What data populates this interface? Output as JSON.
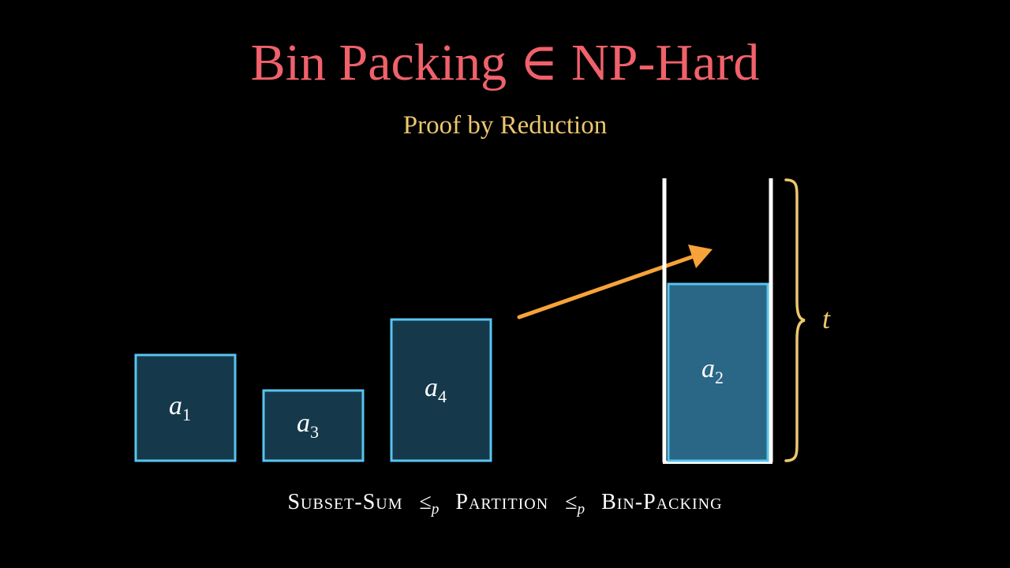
{
  "slide": {
    "title_text": "Bin Packing",
    "title_symbol": "∈",
    "title_class": "NP-Hard",
    "subtitle": "Proof by Reduction"
  },
  "items": [
    {
      "name": "a",
      "index": "1",
      "state": "outside"
    },
    {
      "name": "a",
      "index": "3",
      "state": "outside"
    },
    {
      "name": "a",
      "index": "4",
      "state": "outside"
    },
    {
      "name": "a",
      "index": "2",
      "state": "in-bin"
    }
  ],
  "bin": {
    "capacity_label": "t"
  },
  "reduction": {
    "problem_1": "Subset-Sum",
    "problem_2": "Partition",
    "problem_3": "Bin-Packing",
    "operator": "≤",
    "operator_subscript": "p"
  },
  "colors": {
    "background": "#000000",
    "title": "#f0616b",
    "subtitle": "#ecc76e",
    "item_fill": "#15394b",
    "item_fill_in_bin": "#2a6685",
    "item_stroke": "#58c4f0",
    "bin_wall": "#ffffff",
    "arrow": "#f7a33a",
    "brace": "#ecc76e"
  }
}
